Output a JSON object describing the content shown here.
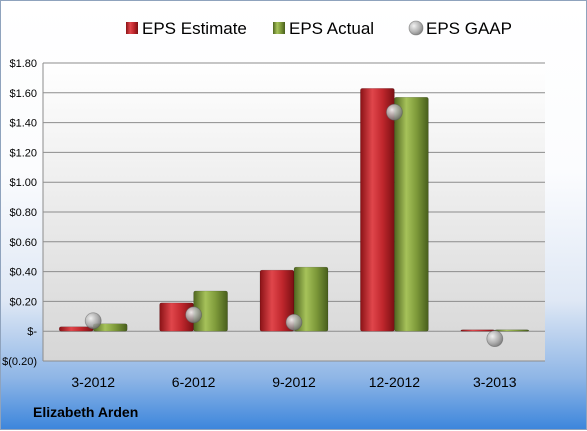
{
  "company_label": "Elizabeth Arden",
  "chart_data": {
    "type": "bar",
    "categories": [
      "3-2012",
      "6-2012",
      "9-2012",
      "12-2012",
      "3-2013"
    ],
    "series": [
      {
        "name": "EPS Estimate",
        "kind": "bar",
        "color": "#c0272d",
        "values": [
          0.03,
          0.19,
          0.41,
          1.63,
          0.01
        ]
      },
      {
        "name": "EPS Actual",
        "kind": "bar",
        "color": "#7e9a3a",
        "values": [
          0.05,
          0.27,
          0.43,
          1.57,
          0.01
        ]
      },
      {
        "name": "EPS GAAP",
        "kind": "marker",
        "color": "#a9a9a9",
        "values": [
          0.07,
          0.11,
          0.06,
          1.47,
          -0.05
        ]
      }
    ],
    "ylim": [
      -0.2,
      1.8
    ],
    "yticks": [
      {
        "value": 1.8,
        "label": "$1.80"
      },
      {
        "value": 1.6,
        "label": "$1.60"
      },
      {
        "value": 1.4,
        "label": "$1.40"
      },
      {
        "value": 1.2,
        "label": "$1.20"
      },
      {
        "value": 1.0,
        "label": "$1.00"
      },
      {
        "value": 0.8,
        "label": "$0.80"
      },
      {
        "value": 0.6,
        "label": "$0.60"
      },
      {
        "value": 0.4,
        "label": "$0.40"
      },
      {
        "value": 0.2,
        "label": "$0.20"
      },
      {
        "value": 0.0,
        "label": "$-"
      },
      {
        "value": -0.2,
        "label": "$(0.20)"
      }
    ],
    "grid": true,
    "legend_position": "top"
  }
}
